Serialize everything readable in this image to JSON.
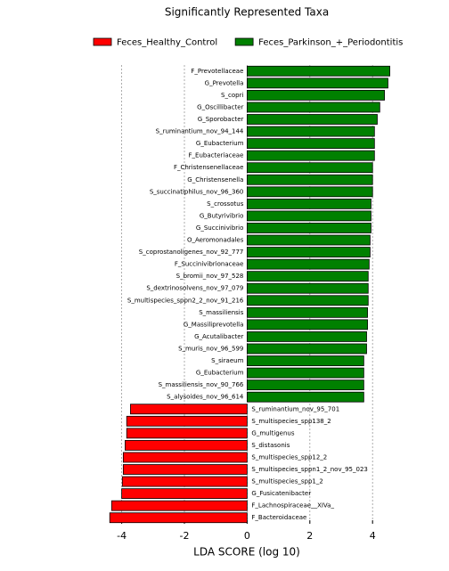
{
  "chart_data": {
    "type": "hbar",
    "title": "Significantly Represented Taxa",
    "xlabel": "LDA SCORE (log 10)",
    "categories": [
      "F_Prevotellaceae",
      "G_Prevotella",
      "S_copri",
      "G_Oscillibacter",
      "G_Sporobacter",
      "S_ruminantium_nov_94_144",
      "G_Eubacterium",
      "F_Eubacteriaceae",
      "F_Christensenellaceae",
      "G_Christensenella",
      "S_succinatiphilus_nov_96_360",
      "S_crossotus",
      "G_Butyrivibrio",
      "G_Succinivibrio",
      "O_Aeromonadales",
      "S_coprostanoligenes_nov_92_777",
      "F_Succinivibrionaceae",
      "S_bromii_nov_97_528",
      "S_dextrinosolvens_nov_97_079",
      "S_multispecies_sppn2_2_nov_91_216",
      "S_massiliensis",
      "G_Massiliprevotella",
      "G_Acutalibacter",
      "S_muris_nov_96_599",
      "S_siraeum",
      "G_Eubacterium",
      "S_massiliensis_nov_90_766",
      "S_alysoides_nov_96_614",
      "S_ruminantium_nov_95_701",
      "S_multispecies_spp138_2",
      "G_multigenus",
      "S_distasonis",
      "S_multispecies_spp12_2",
      "S_multispecies_sppn1_2_nov_95_023",
      "S_multispecies_spp1_2",
      "G_Fusicatenibacter",
      "F_Lachnospiraceae__XIVa_",
      "F_Bacteroidaceae"
    ],
    "series": [
      {
        "name": "Feces_Healthy_Control",
        "color": "#ff0000",
        "values": [
          null,
          null,
          null,
          null,
          null,
          null,
          null,
          null,
          null,
          null,
          null,
          null,
          null,
          null,
          null,
          null,
          null,
          null,
          null,
          null,
          null,
          null,
          null,
          null,
          null,
          null,
          null,
          null,
          -3.72,
          -3.84,
          -3.84,
          -3.89,
          -3.95,
          -3.95,
          -3.98,
          -4.0,
          -4.32,
          -4.38
        ]
      },
      {
        "name": "Feces_Parkinson_+_Periodontitis",
        "color": "#008000",
        "values": [
          4.55,
          4.49,
          4.38,
          4.23,
          4.15,
          4.06,
          4.06,
          4.06,
          4.0,
          4.0,
          4.0,
          3.95,
          3.95,
          3.95,
          3.92,
          3.92,
          3.89,
          3.86,
          3.86,
          3.86,
          3.84,
          3.84,
          3.81,
          3.81,
          3.72,
          3.72,
          3.72,
          3.72,
          null,
          null,
          null,
          null,
          null,
          null,
          null,
          null,
          null,
          null
        ]
      }
    ],
    "xlim": [
      -4.5,
      5.5
    ],
    "xticks": [
      -4,
      -2,
      0,
      2,
      4
    ],
    "grid": true
  }
}
